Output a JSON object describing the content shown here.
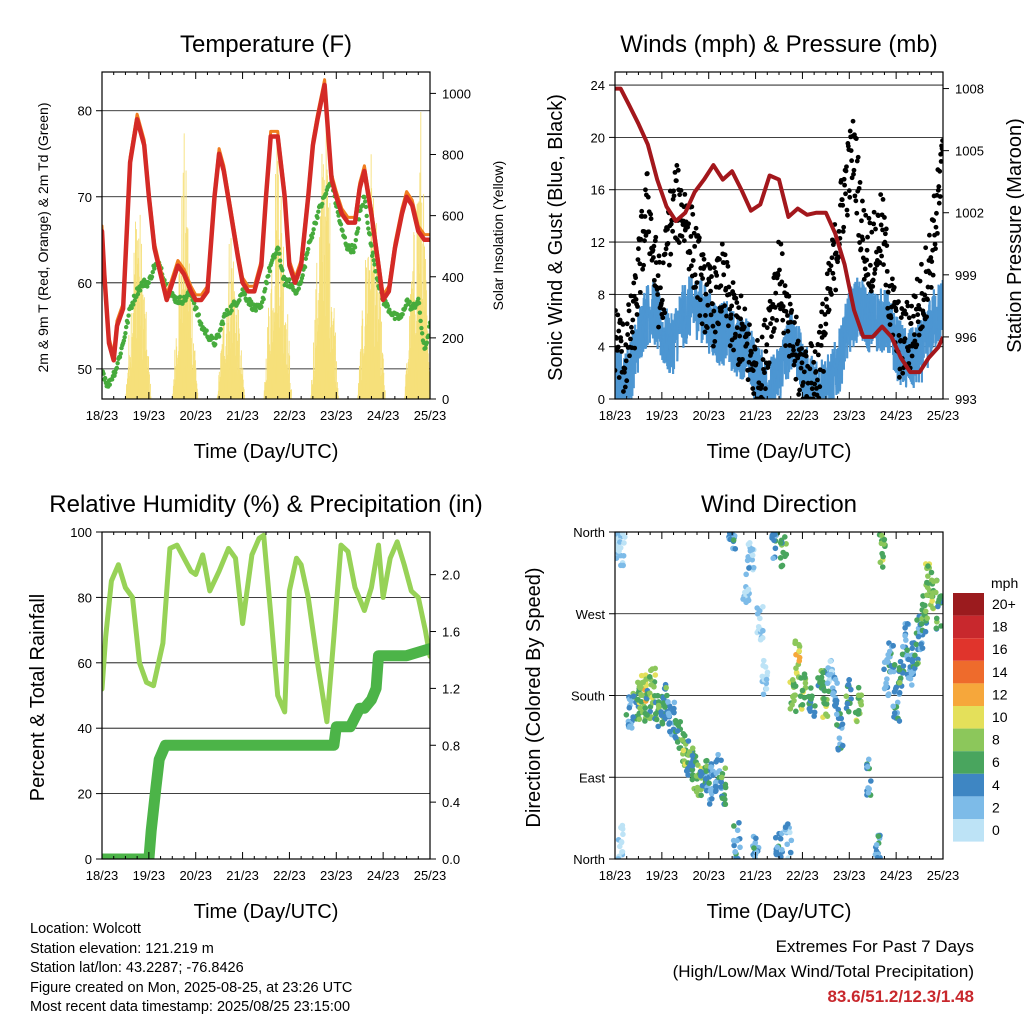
{
  "x_ticks": [
    "18/23",
    "19/23",
    "20/23",
    "21/23",
    "22/23",
    "23/23",
    "24/23",
    "25/23"
  ],
  "xlabel": "Time (Day/UTC)",
  "info": {
    "location": "Location: Wolcott",
    "elevation": "Station elevation: 121.219 m",
    "latlon": "Station lat/lon: 43.2287; -76.8426",
    "created": "Figure created on Mon, 2025-08-25, at 23:26 UTC",
    "recent": "Most recent data timestamp: 2025/08/25 23:15:00"
  },
  "extremes": {
    "title": "Extremes For Past 7 Days",
    "subtitle": "(High/Low/Max Wind/Total Precipitation)",
    "values": "83.6/51.2/12.3/1.48"
  },
  "chart_data": [
    {
      "type": "line",
      "title": "Temperature (F)",
      "xlabel": "Time (Day/UTC)",
      "ylabel": "2m & 9m T (Red, Orange) & 2m Td (Green)",
      "ylabel_right": "Solar Insolation (Yellow)",
      "x_ticks": [
        "18/23",
        "19/23",
        "20/23",
        "21/23",
        "22/23",
        "23/23",
        "24/23",
        "25/23"
      ],
      "xlim": [
        0,
        7
      ],
      "ylim": [
        46.5,
        84.5
      ],
      "ylim_right": [
        0,
        1070
      ],
      "yticks": [
        50,
        60,
        70,
        80
      ],
      "yticks_right": [
        0,
        200,
        400,
        600,
        800,
        1000
      ],
      "grid": "horizontal",
      "colors": {
        "t2m": "#d42a26",
        "t9m": "#f07c1e",
        "td": "#46ab3c",
        "solar": "#f6e07a"
      },
      "series": [
        {
          "key": "t2m",
          "x": [
            0,
            0.05,
            0.15,
            0.25,
            0.32,
            0.45,
            0.6,
            0.75,
            0.9,
            1.0,
            1.12,
            1.25,
            1.38,
            1.5,
            1.62,
            1.75,
            1.9,
            2.0,
            2.12,
            2.25,
            2.4,
            2.5,
            2.6,
            2.75,
            2.9,
            3.0,
            3.12,
            3.25,
            3.4,
            3.5,
            3.6,
            3.75,
            3.9,
            4.0,
            4.12,
            4.25,
            4.4,
            4.5,
            4.6,
            4.75,
            4.9,
            5.0,
            5.12,
            5.25,
            5.4,
            5.5,
            5.6,
            5.75,
            5.9,
            6.0,
            6.12,
            6.25,
            6.4,
            6.5,
            6.62,
            6.75,
            6.88,
            7.0
          ],
          "y": [
            66,
            61,
            53,
            51,
            55,
            57,
            74,
            79,
            76,
            70,
            64,
            61,
            58,
            60,
            62,
            61,
            59,
            58,
            58,
            59,
            70,
            75,
            73,
            68,
            63,
            60,
            59,
            59,
            62,
            70,
            77,
            77,
            70,
            62,
            60,
            62,
            70,
            76,
            79,
            83,
            72,
            70,
            68,
            67,
            67,
            71,
            73,
            68,
            62,
            58,
            59,
            64,
            68,
            70,
            69,
            66,
            65,
            65
          ]
        },
        {
          "key": "td",
          "x": [
            0,
            0.12,
            0.3,
            0.45,
            0.6,
            0.75,
            0.88,
            1.0,
            1.12,
            1.25,
            1.4,
            1.6,
            1.75,
            1.9,
            2.0,
            2.12,
            2.25,
            2.4,
            2.5,
            2.6,
            2.75,
            2.9,
            3.0,
            3.12,
            3.25,
            3.4,
            3.5,
            3.6,
            3.75,
            3.9,
            4.0,
            4.12,
            4.25,
            4.4,
            4.5,
            4.6,
            4.75,
            4.9,
            5.0,
            5.12,
            5.25,
            5.4,
            5.5,
            5.6,
            5.75,
            5.9,
            6.0,
            6.12,
            6.25,
            6.4,
            6.5,
            6.62,
            6.75,
            6.88,
            7.0
          ],
          "y": [
            50,
            48,
            50,
            53,
            57,
            59,
            60,
            60,
            62,
            62,
            59,
            58,
            58,
            59,
            57,
            55,
            54,
            53,
            54,
            56,
            57,
            58,
            59,
            58,
            57,
            57,
            60,
            62,
            64,
            60,
            60,
            59,
            60,
            64,
            66,
            68,
            70,
            72,
            69,
            66,
            64,
            64,
            68,
            70,
            64,
            60,
            58,
            57,
            56,
            56,
            58,
            57,
            58,
            52,
            55
          ]
        },
        {
          "key": "solar",
          "x": [
            0.05,
            0.5,
            0.75,
            1.05,
            1.5,
            1.75,
            2.05,
            2.45,
            2.75,
            3.05,
            3.45,
            3.75,
            4.05,
            4.45,
            4.75,
            5.05,
            5.45,
            5.75,
            6.05,
            6.45,
            6.8,
            7.0
          ],
          "y": [
            0,
            0,
            780,
            0,
            0,
            880,
            0,
            0,
            630,
            0,
            0,
            1000,
            0,
            0,
            1060,
            0,
            0,
            870,
            0,
            0,
            980,
            0
          ]
        }
      ]
    },
    {
      "type": "scatter",
      "title": "Winds (mph) & Pressure (mb)",
      "xlabel": "Time (Day/UTC)",
      "ylabel": "Sonic Wind & Gust (Blue, Black)",
      "ylabel_right": "Station Pressure (Maroon)",
      "x_ticks": [
        "18/23",
        "19/23",
        "20/23",
        "21/23",
        "22/23",
        "23/23",
        "24/23",
        "25/23"
      ],
      "xlim": [
        0,
        7
      ],
      "ylim": [
        0,
        25
      ],
      "ylim_right": [
        993,
        1008.8
      ],
      "yticks": [
        0,
        4,
        8,
        12,
        16,
        20,
        24
      ],
      "yticks_right": [
        993,
        996,
        999,
        1002,
        1005,
        1008
      ],
      "grid": "horizontal",
      "colors": {
        "wind": "#4d96d2",
        "gust": "#000000",
        "pressure": "#a3171c"
      },
      "series": [
        {
          "key": "gust",
          "x": [
            0,
            0.2,
            0.4,
            0.55,
            0.7,
            0.85,
            1.0,
            1.15,
            1.3,
            1.5,
            1.7,
            1.9,
            2.1,
            2.3,
            2.5,
            2.7,
            2.9,
            3.1,
            3.3,
            3.5,
            3.7,
            3.9,
            4.1,
            4.3,
            4.5,
            4.7,
            4.9,
            5.1,
            5.3,
            5.5,
            5.7,
            5.9,
            6.1,
            6.3,
            6.5,
            6.7,
            6.9,
            7.0
          ],
          "y": [
            5,
            3,
            6,
            11,
            15,
            10,
            7,
            13,
            15,
            14,
            11,
            8,
            7,
            9,
            6,
            5,
            3,
            1,
            6,
            10,
            5,
            3,
            1,
            2,
            6,
            11,
            16,
            19,
            12,
            11,
            13,
            7,
            4,
            5,
            7,
            10,
            15,
            18
          ]
        },
        {
          "key": "wind",
          "x": [
            0,
            0.2,
            0.4,
            0.6,
            0.8,
            1.0,
            1.2,
            1.4,
            1.6,
            1.8,
            2.0,
            2.2,
            2.4,
            2.6,
            2.8,
            3.0,
            3.2,
            3.4,
            3.6,
            3.8,
            4.0,
            4.2,
            4.4,
            4.6,
            4.8,
            5.0,
            5.2,
            5.4,
            5.6,
            5.8,
            6.0,
            6.2,
            6.4,
            6.6,
            6.8,
            7.0
          ],
          "y": [
            2,
            1,
            3,
            6,
            7,
            5,
            4,
            6,
            7,
            7,
            6,
            5,
            5,
            4,
            4,
            2,
            1,
            1,
            3,
            5,
            2,
            1,
            1,
            1,
            3,
            6,
            7,
            6,
            6,
            6,
            4,
            3,
            3,
            4,
            6,
            7
          ]
        },
        {
          "key": "pressure",
          "x": [
            0,
            0.12,
            0.3,
            0.5,
            0.7,
            0.9,
            1.1,
            1.3,
            1.5,
            1.7,
            1.9,
            2.1,
            2.3,
            2.5,
            2.7,
            2.9,
            3.1,
            3.3,
            3.5,
            3.7,
            3.9,
            4.1,
            4.3,
            4.5,
            4.7,
            4.9,
            5.1,
            5.3,
            5.5,
            5.7,
            5.9,
            6.1,
            6.3,
            6.5,
            6.7,
            6.9,
            7.0
          ],
          "y": [
            1008,
            1008,
            1007.2,
            1006.3,
            1005.3,
            1003.6,
            1002.3,
            1001.6,
            1002,
            1003,
            1003.6,
            1004.3,
            1003.6,
            1004,
            1003.1,
            1002.1,
            1002.4,
            1003.8,
            1003.6,
            1001.8,
            1002.2,
            1001.9,
            1002,
            1002,
            1001,
            999.5,
            997.3,
            996,
            996,
            996.5,
            996,
            995,
            994.3,
            994.3,
            995,
            995.5,
            996
          ]
        }
      ]
    },
    {
      "type": "line",
      "title": "Relative Humidity (%) & Precipitation (in)",
      "xlabel": "Time (Day/UTC)",
      "ylabel": "Percent & Total Rainfall",
      "x_ticks": [
        "18/23",
        "19/23",
        "20/23",
        "21/23",
        "22/23",
        "23/23",
        "24/23",
        "25/23"
      ],
      "xlim": [
        0,
        7
      ],
      "ylim": [
        0,
        100
      ],
      "ylim_right": [
        0,
        2.3
      ],
      "yticks": [
        0,
        20,
        40,
        60,
        80,
        100
      ],
      "yticks_right": [
        0.0,
        0.4,
        0.8,
        1.2,
        1.6,
        2.0
      ],
      "grid": "horizontal",
      "colors": {
        "rh": "#97d257",
        "precip": "#4cb448"
      },
      "series": [
        {
          "key": "rh",
          "x": [
            0,
            0.08,
            0.2,
            0.35,
            0.5,
            0.65,
            0.8,
            0.95,
            1.1,
            1.3,
            1.45,
            1.6,
            1.75,
            1.9,
            2.0,
            2.15,
            2.3,
            2.5,
            2.7,
            2.85,
            3.0,
            3.2,
            3.35,
            3.45,
            3.6,
            3.75,
            3.9,
            4.0,
            4.15,
            4.25,
            4.4,
            4.6,
            4.8,
            4.95,
            5.1,
            5.25,
            5.4,
            5.6,
            5.75,
            5.9,
            6.0,
            6.15,
            6.3,
            6.45,
            6.6,
            6.75,
            6.9,
            7.0
          ],
          "y": [
            52,
            68,
            85,
            90,
            83,
            80,
            60,
            54,
            53,
            66,
            95,
            96,
            92,
            88,
            87,
            93,
            82,
            88,
            95,
            92,
            72,
            93,
            98,
            99,
            75,
            50,
            45,
            82,
            92,
            90,
            80,
            60,
            42,
            68,
            96,
            94,
            83,
            76,
            83,
            96,
            80,
            92,
            97,
            90,
            82,
            80,
            70,
            62
          ]
        },
        {
          "key": "precip",
          "x": [
            0,
            1.0,
            1.05,
            1.15,
            1.22,
            1.35,
            1.5,
            2.0,
            3.0,
            4.0,
            4.95,
            5.0,
            5.3,
            5.5,
            5.6,
            5.75,
            5.85,
            5.9,
            6.5,
            7.0
          ],
          "y": [
            0,
            0,
            0.2,
            0.5,
            0.7,
            0.8,
            0.8,
            0.8,
            0.8,
            0.8,
            0.8,
            0.93,
            0.93,
            1.06,
            1.06,
            1.12,
            1.2,
            1.43,
            1.43,
            1.48
          ]
        }
      ]
    },
    {
      "type": "scatter",
      "title": "Wind Direction",
      "xlabel": "Time (Day/UTC)",
      "ylabel": "Direction (Colored By Speed)",
      "x_ticks": [
        "18/23",
        "19/23",
        "20/23",
        "21/23",
        "22/23",
        "23/23",
        "24/23",
        "25/23"
      ],
      "xlim": [
        0,
        7
      ],
      "ylim": [
        0,
        360
      ],
      "yticks": [
        0,
        90,
        180,
        270,
        360
      ],
      "ytick_labels": [
        "North",
        "East",
        "South",
        "West",
        "North"
      ],
      "grid": "horizontal",
      "legend": {
        "title": "mph",
        "labels": [
          "20+",
          "18",
          "16",
          "14",
          "12",
          "10",
          "8",
          "6",
          "4",
          "2",
          "0"
        ],
        "colors": [
          "#9b1b1e",
          "#c8282d",
          "#e0342c",
          "#ee6b2c",
          "#f6a73b",
          "#e4e05a",
          "#8cc75b",
          "#49a55e",
          "#3e86c3",
          "#7dbbe8",
          "#bde3f6"
        ],
        "placement": "right"
      },
      "series": [
        {
          "key": "dir",
          "x": [
            0.05,
            0.1,
            0.15,
            0.3,
            0.45,
            0.55,
            0.6,
            0.7,
            0.8,
            0.9,
            1.0,
            1.1,
            1.2,
            1.35,
            1.5,
            1.6,
            1.7,
            1.8,
            1.9,
            2.0,
            2.1,
            2.2,
            2.3,
            2.5,
            2.6,
            2.8,
            2.9,
            3.0,
            3.1,
            3.2,
            3.4,
            3.5,
            3.6,
            3.7,
            3.8,
            3.9,
            4.0,
            4.2,
            4.4,
            4.5,
            4.6,
            4.7,
            4.8,
            5.0,
            5.2,
            5.4,
            5.6,
            5.7,
            5.8,
            5.9,
            6.0,
            6.1,
            6.2,
            6.3,
            6.4,
            6.5,
            6.6,
            6.7,
            6.8,
            6.9
          ],
          "y": [
            350,
            20,
            340,
            160,
            170,
            175,
            185,
            170,
            190,
            165,
            160,
            175,
            155,
            140,
            120,
            110,
            95,
            85,
            90,
            80,
            85,
            95,
            80,
            355,
            20,
            300,
            330,
            10,
            260,
            200,
            350,
            10,
            340,
            20,
            180,
            220,
            185,
            170,
            190,
            175,
            200,
            180,
            140,
            180,
            170,
            90,
            10,
            340,
            200,
            220,
            170,
            200,
            240,
            210,
            230,
            250,
            270,
            310,
            290,
            270
          ],
          "speed": [
            1,
            1,
            2,
            4,
            6,
            8,
            10,
            6,
            8,
            6,
            6,
            6,
            4,
            6,
            8,
            6,
            6,
            8,
            6,
            4,
            4,
            4,
            6,
            4,
            4,
            2,
            2,
            4,
            1,
            1,
            4,
            4,
            6,
            2,
            8,
            10,
            8,
            6,
            6,
            8,
            2,
            4,
            4,
            6,
            8,
            4,
            4,
            8,
            4,
            4,
            4,
            6,
            4,
            4,
            6,
            4,
            6,
            8,
            8,
            6
          ]
        }
      ]
    }
  ]
}
